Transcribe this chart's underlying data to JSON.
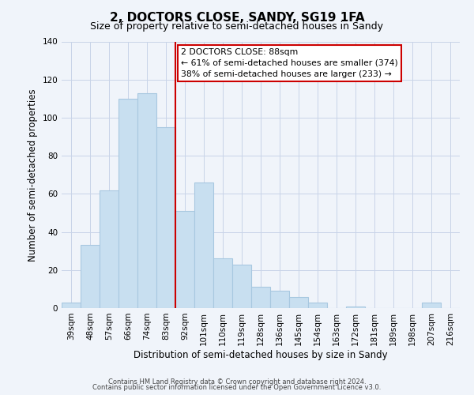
{
  "title": "2, DOCTORS CLOSE, SANDY, SG19 1FA",
  "subtitle": "Size of property relative to semi-detached houses in Sandy",
  "xlabel": "Distribution of semi-detached houses by size in Sandy",
  "ylabel": "Number of semi-detached properties",
  "bar_labels": [
    "39sqm",
    "48sqm",
    "57sqm",
    "66sqm",
    "74sqm",
    "83sqm",
    "92sqm",
    "101sqm",
    "110sqm",
    "119sqm",
    "128sqm",
    "136sqm",
    "145sqm",
    "154sqm",
    "163sqm",
    "172sqm",
    "181sqm",
    "189sqm",
    "198sqm",
    "207sqm",
    "216sqm"
  ],
  "bar_values": [
    3,
    33,
    62,
    110,
    113,
    95,
    51,
    66,
    26,
    23,
    11,
    9,
    6,
    3,
    0,
    1,
    0,
    0,
    0,
    3,
    0
  ],
  "bar_color": "#c8dff0",
  "bar_edge_color": "#a8c8e0",
  "vline_x": 5.5,
  "vline_color": "#cc0000",
  "annotation_title": "2 DOCTORS CLOSE: 88sqm",
  "annotation_line1": "← 61% of semi-detached houses are smaller (374)",
  "annotation_line2": "38% of semi-detached houses are larger (233) →",
  "annotation_box_color": "#ffffff",
  "annotation_box_edge": "#cc0000",
  "ylim": [
    0,
    140
  ],
  "yticks": [
    0,
    20,
    40,
    60,
    80,
    100,
    120,
    140
  ],
  "footer1": "Contains HM Land Registry data © Crown copyright and database right 2024.",
  "footer2": "Contains public sector information licensed under the Open Government Licence v3.0.",
  "bg_color": "#f0f4fa",
  "grid_color": "#c8d4e8",
  "title_fontsize": 11,
  "subtitle_fontsize": 9,
  "axis_label_fontsize": 8.5,
  "tick_fontsize": 7.5
}
